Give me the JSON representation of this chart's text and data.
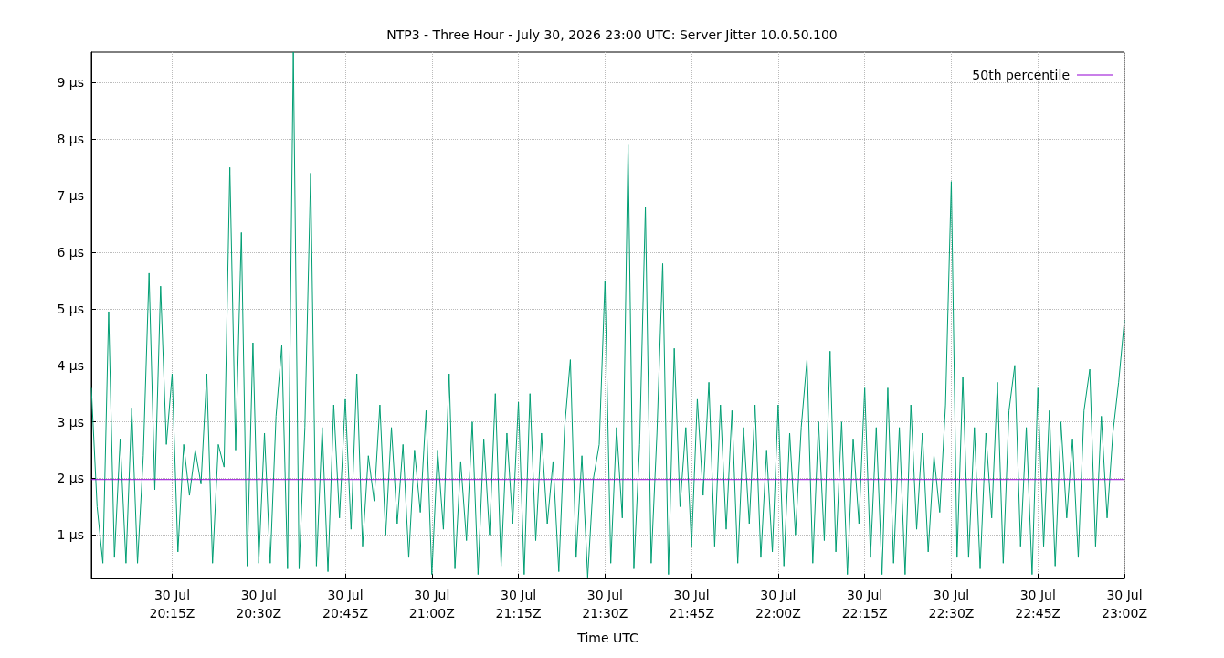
{
  "chart_data": {
    "type": "line",
    "title": "NTP3 - Three Hour - July 30, 2026 23:00 UTC: Server Jitter 10.0.50.100",
    "xlabel": "Time UTC",
    "x": [
      "2026-07-30T20:01",
      "2026-07-30T20:02",
      "2026-07-30T20:03",
      "2026-07-30T20:04",
      "2026-07-30T20:05",
      "2026-07-30T20:06",
      "2026-07-30T20:07",
      "2026-07-30T20:08",
      "2026-07-30T20:09",
      "2026-07-30T20:10",
      "2026-07-30T20:11",
      "2026-07-30T20:12",
      "2026-07-30T20:13",
      "2026-07-30T20:14",
      "2026-07-30T20:15",
      "2026-07-30T20:16",
      "2026-07-30T20:17",
      "2026-07-30T20:18",
      "2026-07-30T20:19",
      "2026-07-30T20:20",
      "2026-07-30T20:21",
      "2026-07-30T20:22",
      "2026-07-30T20:23",
      "2026-07-30T20:24",
      "2026-07-30T20:25",
      "2026-07-30T20:26",
      "2026-07-30T20:27",
      "2026-07-30T20:28",
      "2026-07-30T20:29",
      "2026-07-30T20:30",
      "2026-07-30T20:31",
      "2026-07-30T20:32",
      "2026-07-30T20:33",
      "2026-07-30T20:34",
      "2026-07-30T20:35",
      "2026-07-30T20:36",
      "2026-07-30T20:37",
      "2026-07-30T20:38",
      "2026-07-30T20:39",
      "2026-07-30T20:40",
      "2026-07-30T20:41",
      "2026-07-30T20:42",
      "2026-07-30T20:43",
      "2026-07-30T20:44",
      "2026-07-30T20:45",
      "2026-07-30T20:46",
      "2026-07-30T20:47",
      "2026-07-30T20:48",
      "2026-07-30T20:49",
      "2026-07-30T20:50",
      "2026-07-30T20:51",
      "2026-07-30T20:52",
      "2026-07-30T20:53",
      "2026-07-30T20:54",
      "2026-07-30T20:55",
      "2026-07-30T20:56",
      "2026-07-30T20:57",
      "2026-07-30T20:58",
      "2026-07-30T20:59",
      "2026-07-30T21:00",
      "2026-07-30T21:01",
      "2026-07-30T21:02",
      "2026-07-30T21:03",
      "2026-07-30T21:04",
      "2026-07-30T21:05",
      "2026-07-30T21:06",
      "2026-07-30T21:07",
      "2026-07-30T21:08",
      "2026-07-30T21:09",
      "2026-07-30T21:10",
      "2026-07-30T21:11",
      "2026-07-30T21:12",
      "2026-07-30T21:13",
      "2026-07-30T21:14",
      "2026-07-30T21:15",
      "2026-07-30T21:16",
      "2026-07-30T21:17",
      "2026-07-30T21:18",
      "2026-07-30T21:19",
      "2026-07-30T21:20",
      "2026-07-30T21:21",
      "2026-07-30T21:22",
      "2026-07-30T21:23",
      "2026-07-30T21:24",
      "2026-07-30T21:25",
      "2026-07-30T21:26",
      "2026-07-30T21:27",
      "2026-07-30T21:28",
      "2026-07-30T21:29",
      "2026-07-30T21:30",
      "2026-07-30T21:31",
      "2026-07-30T21:32",
      "2026-07-30T21:33",
      "2026-07-30T21:34",
      "2026-07-30T21:35",
      "2026-07-30T21:36",
      "2026-07-30T21:37",
      "2026-07-30T21:38",
      "2026-07-30T21:39",
      "2026-07-30T21:40",
      "2026-07-30T21:41",
      "2026-07-30T21:42",
      "2026-07-30T21:43",
      "2026-07-30T21:44",
      "2026-07-30T21:45",
      "2026-07-30T21:46",
      "2026-07-30T21:47",
      "2026-07-30T21:48",
      "2026-07-30T21:49",
      "2026-07-30T21:50",
      "2026-07-30T21:51",
      "2026-07-30T21:52",
      "2026-07-30T21:53",
      "2026-07-30T21:54",
      "2026-07-30T21:55",
      "2026-07-30T21:56",
      "2026-07-30T21:57",
      "2026-07-30T21:58",
      "2026-07-30T21:59",
      "2026-07-30T22:00",
      "2026-07-30T22:01",
      "2026-07-30T22:02",
      "2026-07-30T22:03",
      "2026-07-30T22:04",
      "2026-07-30T22:05",
      "2026-07-30T22:06",
      "2026-07-30T22:07",
      "2026-07-30T22:08",
      "2026-07-30T22:09",
      "2026-07-30T22:10",
      "2026-07-30T22:11",
      "2026-07-30T22:12",
      "2026-07-30T22:13",
      "2026-07-30T22:14",
      "2026-07-30T22:15",
      "2026-07-30T22:16",
      "2026-07-30T22:17",
      "2026-07-30T22:18",
      "2026-07-30T22:19",
      "2026-07-30T22:20",
      "2026-07-30T22:21",
      "2026-07-30T22:22",
      "2026-07-30T22:23",
      "2026-07-30T22:24",
      "2026-07-30T22:25",
      "2026-07-30T22:26",
      "2026-07-30T22:27",
      "2026-07-30T22:28",
      "2026-07-30T22:29",
      "2026-07-30T22:30",
      "2026-07-30T22:31",
      "2026-07-30T22:32",
      "2026-07-30T22:33",
      "2026-07-30T22:34",
      "2026-07-30T22:35",
      "2026-07-30T22:36",
      "2026-07-30T22:37",
      "2026-07-30T22:38",
      "2026-07-30T22:39",
      "2026-07-30T22:40",
      "2026-07-30T22:41",
      "2026-07-30T22:42",
      "2026-07-30T22:43",
      "2026-07-30T22:44",
      "2026-07-30T22:45",
      "2026-07-30T22:46",
      "2026-07-30T22:47",
      "2026-07-30T22:48",
      "2026-07-30T22:49",
      "2026-07-30T22:50",
      "2026-07-30T22:51",
      "2026-07-30T22:52",
      "2026-07-30T22:53",
      "2026-07-30T22:54",
      "2026-07-30T22:55",
      "2026-07-30T22:56",
      "2026-07-30T22:57",
      "2026-07-30T22:58",
      "2026-07-30T22:59",
      "2026-07-30T23:00"
    ],
    "series": [
      {
        "name": "50th percentile",
        "color": "#9400d3",
        "x": [
          "2026-07-30T20:01",
          "2026-07-30T23:00"
        ],
        "values": [
          1.98,
          1.98
        ]
      },
      {
        "color": "#009e73",
        "values": [
          3.6,
          1.5,
          0.5,
          4.95,
          0.6,
          2.7,
          0.5,
          3.25,
          0.5,
          2.4,
          5.63,
          1.8,
          5.4,
          2.6,
          3.85,
          0.7,
          2.6,
          1.7,
          2.5,
          1.9,
          3.85,
          0.5,
          2.6,
          2.2,
          7.5,
          2.5,
          6.35,
          0.45,
          4.4,
          0.5,
          2.8,
          0.5,
          3.1,
          4.35,
          0.4,
          9.54,
          0.4,
          2.9,
          7.4,
          0.45,
          2.9,
          0.35,
          3.3,
          1.3,
          3.4,
          1.1,
          3.85,
          0.8,
          2.4,
          1.6,
          3.3,
          1.0,
          2.9,
          1.2,
          2.6,
          0.6,
          2.5,
          1.4,
          3.2,
          0.3,
          2.5,
          1.1,
          3.85,
          0.4,
          2.3,
          0.9,
          3.0,
          0.3,
          2.7,
          1.0,
          3.5,
          0.45,
          2.8,
          1.2,
          3.35,
          0.3,
          3.5,
          0.9,
          2.8,
          1.2,
          2.3,
          0.35,
          2.9,
          4.1,
          0.6,
          2.4,
          0.25,
          2.0,
          2.6,
          5.5,
          0.5,
          2.9,
          1.3,
          7.9,
          0.4,
          2.6,
          6.8,
          0.5,
          2.8,
          5.8,
          0.3,
          4.3,
          1.5,
          2.9,
          0.8,
          3.4,
          1.7,
          3.7,
          0.8,
          3.3,
          1.1,
          3.2,
          0.5,
          2.9,
          1.2,
          3.3,
          0.6,
          2.5,
          0.7,
          3.3,
          0.45,
          2.8,
          1.0,
          2.9,
          4.1,
          0.5,
          3.0,
          0.9,
          4.25,
          0.7,
          3.0,
          0.3,
          2.7,
          1.2,
          3.6,
          0.6,
          2.9,
          0.3,
          3.6,
          0.5,
          2.9,
          0.3,
          3.3,
          1.1,
          2.8,
          0.7,
          2.4,
          1.4,
          3.3,
          7.25,
          0.6,
          3.8,
          0.6,
          2.9,
          0.4,
          2.8,
          1.3,
          3.7,
          0.5,
          3.2,
          4.0,
          0.8,
          2.9,
          0.3,
          3.6,
          0.8,
          3.2,
          0.45,
          3.0,
          1.3,
          2.7,
          0.6,
          3.2,
          3.93,
          0.8,
          3.1,
          1.3,
          2.8,
          3.7,
          4.8
        ]
      }
    ],
    "xlim": [
      "2026-07-30T20:01",
      "2026-07-30T23:00"
    ],
    "xticks": [
      {
        "value": "2026-07-30T20:15",
        "label": "30 Jul\n20:15Z"
      },
      {
        "value": "2026-07-30T20:30",
        "label": "30 Jul\n20:30Z"
      },
      {
        "value": "2026-07-30T20:45",
        "label": "30 Jul\n20:45Z"
      },
      {
        "value": "2026-07-30T21:00",
        "label": "30 Jul\n21:00Z"
      },
      {
        "value": "2026-07-30T21:15",
        "label": "30 Jul\n21:15Z"
      },
      {
        "value": "2026-07-30T21:30",
        "label": "30 Jul\n21:30Z"
      },
      {
        "value": "2026-07-30T21:45",
        "label": "30 Jul\n21:45Z"
      },
      {
        "value": "2026-07-30T22:00",
        "label": "30 Jul\n22:00Z"
      },
      {
        "value": "2026-07-30T22:15",
        "label": "30 Jul\n22:15Z"
      },
      {
        "value": "2026-07-30T22:30",
        "label": "30 Jul\n22:30Z"
      },
      {
        "value": "2026-07-30T22:45",
        "label": "30 Jul\n22:45Z"
      },
      {
        "value": "2026-07-30T23:00",
        "label": "30 Jul\n23:00Z"
      }
    ],
    "ylim": [
      0.23,
      9.54
    ],
    "yticks": [
      {
        "value": 1,
        "label": "1 µs"
      },
      {
        "value": 2,
        "label": "2 µs"
      },
      {
        "value": 3,
        "label": "3 µs"
      },
      {
        "value": 4,
        "label": "4 µs"
      },
      {
        "value": 5,
        "label": "5 µs"
      },
      {
        "value": 6,
        "label": "6 µs"
      },
      {
        "value": 7,
        "label": "7 µs"
      },
      {
        "value": 8,
        "label": "8 µs"
      },
      {
        "value": 9,
        "label": "9 µs"
      }
    ],
    "grid": true,
    "legend": "top right",
    "marker": "none",
    "line_style": "solid"
  }
}
